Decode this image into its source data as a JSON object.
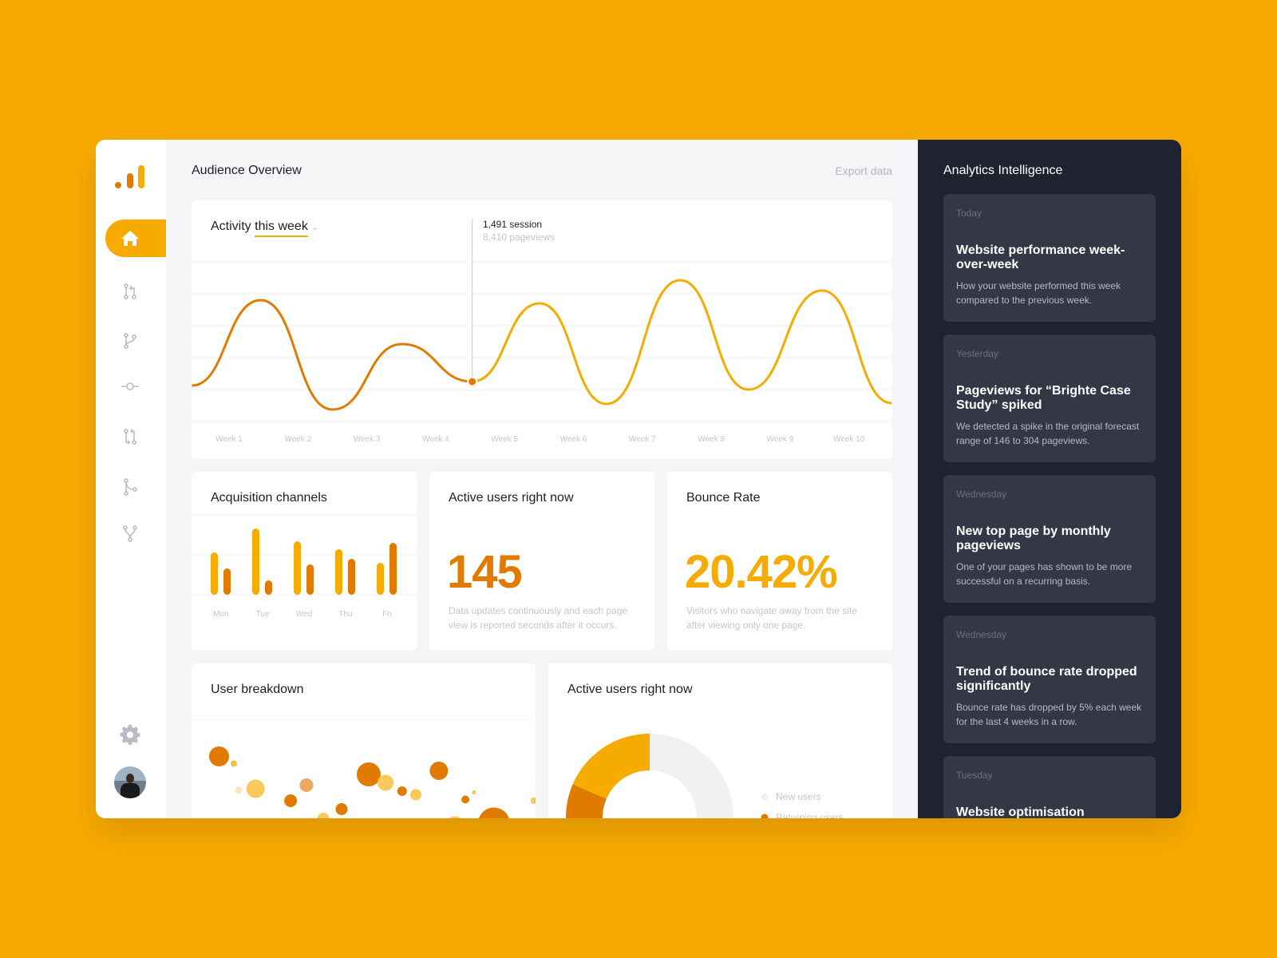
{
  "colors": {
    "background": "#f7ab00",
    "orange": "#e07b00",
    "yellow": "#f5ab00",
    "dark_panel": "#1f2230",
    "insight_card": "#333746"
  },
  "sidebar": {
    "logo": "analytics-bars-logo",
    "items": [
      {
        "icon": "home-icon",
        "active": true
      },
      {
        "icon": "pull-request-icon"
      },
      {
        "icon": "branch-icon"
      },
      {
        "icon": "commit-icon"
      },
      {
        "icon": "compare-icon"
      },
      {
        "icon": "merge-icon"
      },
      {
        "icon": "fork-icon"
      }
    ],
    "settings_icon": "gear-icon",
    "avatar": "user-avatar"
  },
  "header": {
    "title": "Audience Overview",
    "export": "Export data"
  },
  "activity": {
    "title_prefix": "Activity",
    "title_link": "this week",
    "tooltip_sessions": "1,491 session",
    "tooltip_pageviews": "8,410 pageviews"
  },
  "acquisition": {
    "title": "Acquisition channels"
  },
  "active_users": {
    "title": "Active users right now",
    "value": "145",
    "desc": "Data updates continuously and each page view is reported seconds after it occurs."
  },
  "bounce": {
    "title": "Bounce Rate",
    "value": "20.42%",
    "desc": "Visitors who navigate away from the site after viewing only one page."
  },
  "breakdown": {
    "title": "User breakdown"
  },
  "active_donut": {
    "title": "Active users right now"
  },
  "insights": {
    "title": "Analytics Intelligence",
    "items": [
      {
        "date": "Today",
        "title": "Website performance week-over-week",
        "desc": "How your website performed this week compared to the previous week."
      },
      {
        "date": "Yesterday",
        "title": "Pageviews for “Brighte Case Study” spiked",
        "desc": "We detected a spike in the original forecast range of 146 to 304 pageviews."
      },
      {
        "date": "Wednesday",
        "title": "New top page by monthly pageviews",
        "desc": "One of your pages has shown to be more successful on a recurring basis."
      },
      {
        "date": "Wednesday",
        "title": "Trend of bounce rate dropped significantly",
        "desc": "Bounce rate has dropped by 5% each week for the last 4 weeks in a row."
      },
      {
        "date": "Tuesday",
        "title": "Website optimisation",
        "desc": ""
      }
    ]
  },
  "chart_data": [
    {
      "type": "line",
      "categories": [
        "Week 1",
        "Week 2",
        "Week 3",
        "Week 4",
        "Week 5",
        "Week 6",
        "Week 7",
        "Week 8",
        "Week 9",
        "Week 10"
      ],
      "x": [
        0.46,
        1.46,
        2.5,
        3.51,
        4.53,
        5.51,
        6.48,
        7.55,
        8.54,
        9.61,
        10.62
      ],
      "y": [
        22.5,
        76,
        7.5,
        48.5,
        25,
        74,
        11,
        88.5,
        20,
        82,
        11.5
      ],
      "highlight_index": 4,
      "ylim": [
        0,
        100
      ],
      "grid": true
    },
    {
      "type": "bar",
      "categories": [
        "Mon",
        "Tue",
        "Wed",
        "Thu",
        "Fri"
      ],
      "series": [
        {
          "values": [
            53,
            83,
            67,
            57,
            40
          ],
          "color": "#f5ab00"
        },
        {
          "values": [
            33,
            18,
            38,
            45,
            65
          ],
          "color": "#e07b00"
        }
      ],
      "ylim": [
        0,
        100
      ],
      "grid": true
    },
    {
      "type": "scatter",
      "points": [
        {
          "x": 8,
          "y": 75,
          "size": 12.5,
          "color": "#e07b00"
        },
        {
          "x": 12.3,
          "y": 69,
          "size": 4,
          "color": "#f5c04a"
        },
        {
          "x": 13.7,
          "y": 47,
          "size": 4.5,
          "color": "#fbe6b8"
        },
        {
          "x": 18.6,
          "y": 48,
          "size": 11.5,
          "color": "#f9c95c"
        },
        {
          "x": 28.8,
          "y": 38,
          "size": 8,
          "color": "#e07b00"
        },
        {
          "x": 33.4,
          "y": 51,
          "size": 8.5,
          "color": "#eaa860"
        },
        {
          "x": 25,
          "y": 15,
          "size": 11.5,
          "color": "#eaa860"
        },
        {
          "x": 38.3,
          "y": 23,
          "size": 7.5,
          "color": "#f9c95c"
        },
        {
          "x": 43.6,
          "y": 31,
          "size": 7.5,
          "color": "#e07b00"
        },
        {
          "x": 51.5,
          "y": 60,
          "size": 15,
          "color": "#e07b00"
        },
        {
          "x": 56.4,
          "y": 53,
          "size": 10,
          "color": "#f9c95c"
        },
        {
          "x": 61.2,
          "y": 46,
          "size": 6,
          "color": "#e07b00"
        },
        {
          "x": 65.2,
          "y": 43,
          "size": 7,
          "color": "#f9c95c"
        },
        {
          "x": 71.9,
          "y": 63,
          "size": 11.5,
          "color": "#e07b00"
        },
        {
          "x": 79.6,
          "y": 39,
          "size": 5,
          "color": "#e07b00"
        },
        {
          "x": 82.1,
          "y": 45,
          "size": 2.5,
          "color": "#f5c04a"
        },
        {
          "x": 62.9,
          "y": 21,
          "size": 3,
          "color": "#e07b00"
        },
        {
          "x": 76.6,
          "y": 17,
          "size": 12,
          "color": "#f9c95c"
        },
        {
          "x": 87.9,
          "y": 19,
          "size": 20,
          "color": "#e07b00"
        },
        {
          "x": 99.5,
          "y": 38,
          "size": 4,
          "color": "#f9c95c"
        }
      ]
    },
    {
      "type": "pie",
      "donut": true,
      "slices": [
        {
          "name": "New users",
          "value": 50,
          "color": "#f1f1f2"
        },
        {
          "name": "Returning users",
          "value": 31.5,
          "color": "#e07b00"
        },
        {
          "name": "",
          "value": 18.5,
          "color": "#f5ab00"
        }
      ]
    }
  ]
}
